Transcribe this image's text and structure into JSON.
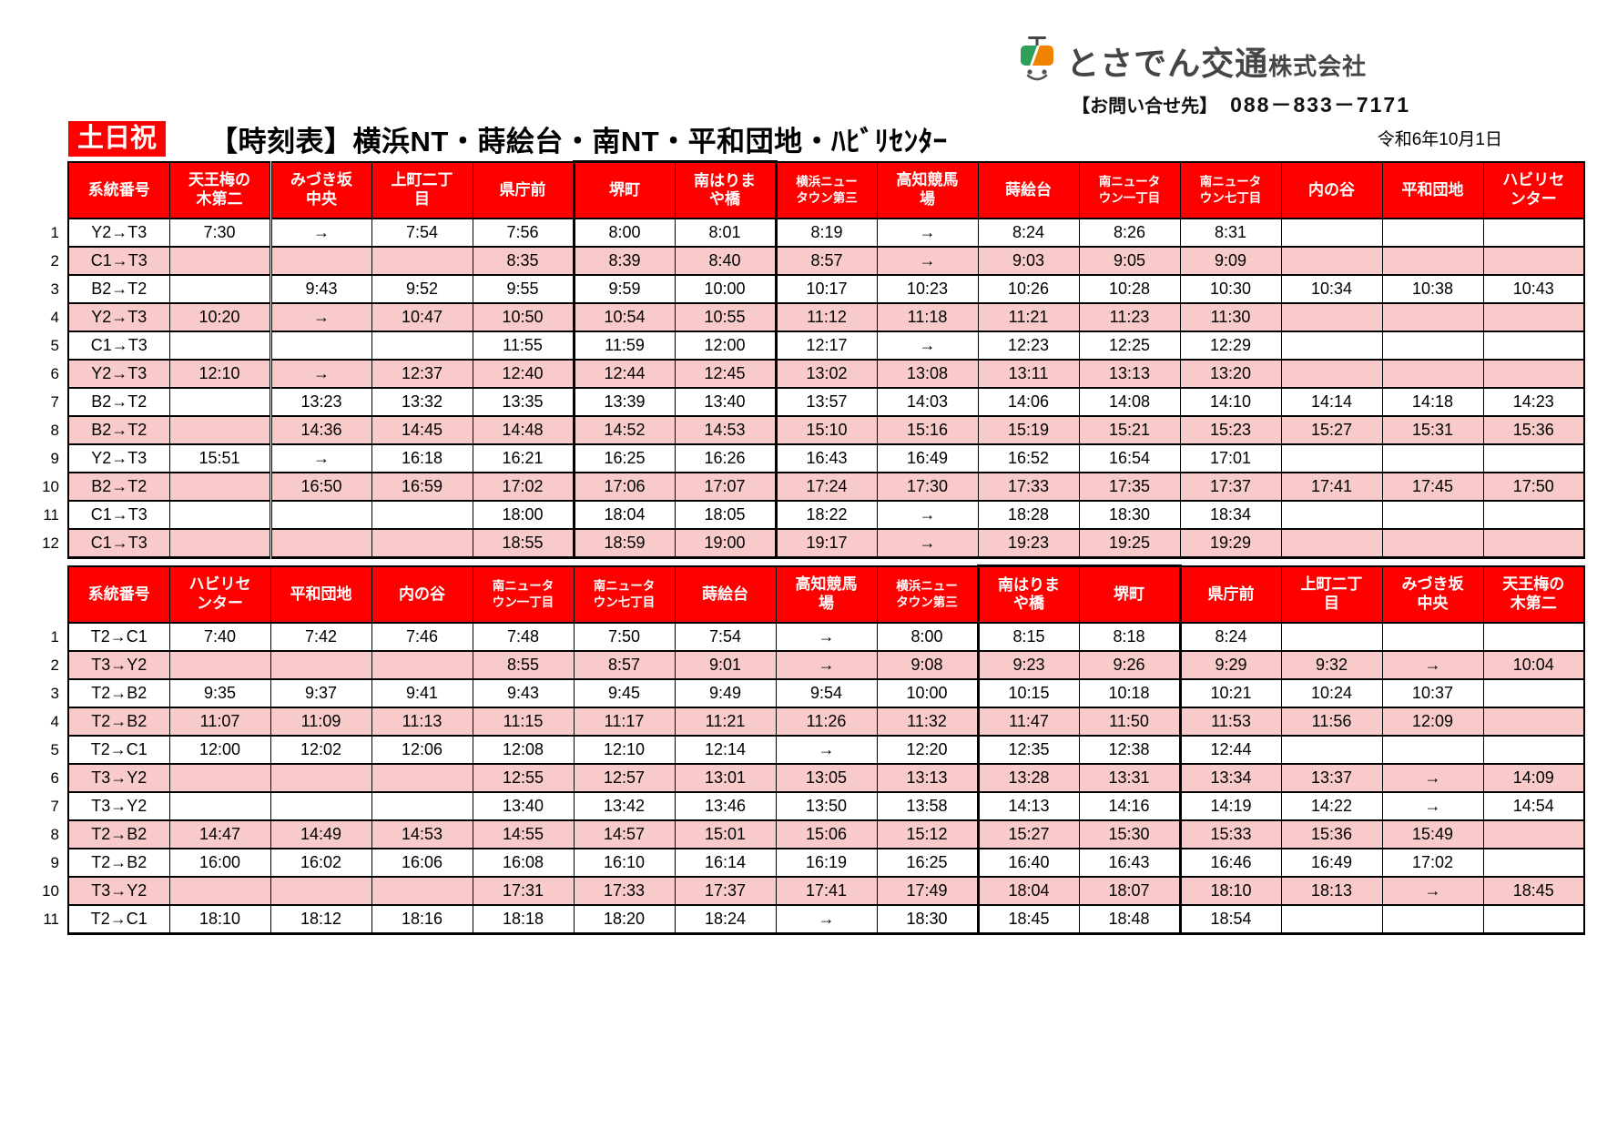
{
  "page": {
    "badge": "土日祝",
    "title": "【時刻表】横浜NT・蒔絵台・南NT・平和団地・ﾊﾋﾞﾘｾﾝﾀｰ",
    "date": "令和6年10月1日"
  },
  "logo": {
    "company": "とさでん交通",
    "suffix": "株式会社",
    "contact_label": "【お問い合せ先】",
    "phone": "088－833－7171",
    "icon": "tram-icon",
    "green": "#2fa05a",
    "orange": "#f08300"
  },
  "colors": {
    "header_red": "#ff0000",
    "row_pink": "#f8caca",
    "row_white": "#ffffff",
    "border": "#000000",
    "badge_red": "#ff0000"
  },
  "tables": [
    {
      "name": "outbound-timetable",
      "highlight_cols": [
        5,
        6
      ],
      "double_border_after_col": 1,
      "headers": [
        "系統番号",
        "天王梅の\n木第二",
        "みづき坂\n中央",
        "上町二丁\n目",
        "県庁前",
        "堺町",
        "南はりま\nや橋",
        "横浜ニュー\nタウン第三",
        "高知競馬\n場",
        "蒔絵台",
        "南ニュータ\nウン一丁目",
        "南ニュータ\nウン七丁目",
        "内の谷",
        "平和団地",
        "ハビリセ\nンター"
      ],
      "rows": [
        [
          "Y2→T3",
          "7:30",
          "→",
          "7:54",
          "7:56",
          "8:00",
          "8:01",
          "8:19",
          "→",
          "8:24",
          "8:26",
          "8:31",
          "",
          "",
          ""
        ],
        [
          "C1→T3",
          "",
          "",
          "",
          "8:35",
          "8:39",
          "8:40",
          "8:57",
          "→",
          "9:03",
          "9:05",
          "9:09",
          "",
          "",
          ""
        ],
        [
          "B2→T2",
          "",
          "9:43",
          "9:52",
          "9:55",
          "9:59",
          "10:00",
          "10:17",
          "10:23",
          "10:26",
          "10:28",
          "10:30",
          "10:34",
          "10:38",
          "10:43"
        ],
        [
          "Y2→T3",
          "10:20",
          "→",
          "10:47",
          "10:50",
          "10:54",
          "10:55",
          "11:12",
          "11:18",
          "11:21",
          "11:23",
          "11:30",
          "",
          "",
          ""
        ],
        [
          "C1→T3",
          "",
          "",
          "",
          "11:55",
          "11:59",
          "12:00",
          "12:17",
          "→",
          "12:23",
          "12:25",
          "12:29",
          "",
          "",
          ""
        ],
        [
          "Y2→T3",
          "12:10",
          "→",
          "12:37",
          "12:40",
          "12:44",
          "12:45",
          "13:02",
          "13:08",
          "13:11",
          "13:13",
          "13:20",
          "",
          "",
          ""
        ],
        [
          "B2→T2",
          "",
          "13:23",
          "13:32",
          "13:35",
          "13:39",
          "13:40",
          "13:57",
          "14:03",
          "14:06",
          "14:08",
          "14:10",
          "14:14",
          "14:18",
          "14:23"
        ],
        [
          "B2→T2",
          "",
          "14:36",
          "14:45",
          "14:48",
          "14:52",
          "14:53",
          "15:10",
          "15:16",
          "15:19",
          "15:21",
          "15:23",
          "15:27",
          "15:31",
          "15:36"
        ],
        [
          "Y2→T3",
          "15:51",
          "→",
          "16:18",
          "16:21",
          "16:25",
          "16:26",
          "16:43",
          "16:49",
          "16:52",
          "16:54",
          "17:01",
          "",
          "",
          ""
        ],
        [
          "B2→T2",
          "",
          "16:50",
          "16:59",
          "17:02",
          "17:06",
          "17:07",
          "17:24",
          "17:30",
          "17:33",
          "17:35",
          "17:37",
          "17:41",
          "17:45",
          "17:50"
        ],
        [
          "C1→T3",
          "",
          "",
          "",
          "18:00",
          "18:04",
          "18:05",
          "18:22",
          "→",
          "18:28",
          "18:30",
          "18:34",
          "",
          "",
          ""
        ],
        [
          "C1→T3",
          "",
          "",
          "",
          "18:55",
          "18:59",
          "19:00",
          "19:17",
          "→",
          "19:23",
          "19:25",
          "19:29",
          "",
          "",
          ""
        ]
      ]
    },
    {
      "name": "inbound-timetable",
      "highlight_cols": [
        9,
        10
      ],
      "double_border_after_col": null,
      "headers": [
        "系統番号",
        "ハビリセ\nンター",
        "平和団地",
        "内の谷",
        "南ニュータ\nウン一丁目",
        "南ニュータ\nウン七丁目",
        "蒔絵台",
        "高知競馬\n場",
        "横浜ニュー\nタウン第三",
        "南はりま\nや橋",
        "堺町",
        "県庁前",
        "上町二丁\n目",
        "みづき坂\n中央",
        "天王梅の\n木第二"
      ],
      "rows": [
        [
          "T2→C1",
          "7:40",
          "7:42",
          "7:46",
          "7:48",
          "7:50",
          "7:54",
          "→",
          "8:00",
          "8:15",
          "8:18",
          "8:24",
          "",
          "",
          ""
        ],
        [
          "T3→Y2",
          "",
          "",
          "",
          "8:55",
          "8:57",
          "9:01",
          "→",
          "9:08",
          "9:23",
          "9:26",
          "9:29",
          "9:32",
          "→",
          "10:04"
        ],
        [
          "T2→B2",
          "9:35",
          "9:37",
          "9:41",
          "9:43",
          "9:45",
          "9:49",
          "9:54",
          "10:00",
          "10:15",
          "10:18",
          "10:21",
          "10:24",
          "10:37",
          ""
        ],
        [
          "T2→B2",
          "11:07",
          "11:09",
          "11:13",
          "11:15",
          "11:17",
          "11:21",
          "11:26",
          "11:32",
          "11:47",
          "11:50",
          "11:53",
          "11:56",
          "12:09",
          ""
        ],
        [
          "T2→C1",
          "12:00",
          "12:02",
          "12:06",
          "12:08",
          "12:10",
          "12:14",
          "→",
          "12:20",
          "12:35",
          "12:38",
          "12:44",
          "",
          "",
          ""
        ],
        [
          "T3→Y2",
          "",
          "",
          "",
          "12:55",
          "12:57",
          "13:01",
          "13:05",
          "13:13",
          "13:28",
          "13:31",
          "13:34",
          "13:37",
          "→",
          "14:09"
        ],
        [
          "T3→Y2",
          "",
          "",
          "",
          "13:40",
          "13:42",
          "13:46",
          "13:50",
          "13:58",
          "14:13",
          "14:16",
          "14:19",
          "14:22",
          "→",
          "14:54"
        ],
        [
          "T2→B2",
          "14:47",
          "14:49",
          "14:53",
          "14:55",
          "14:57",
          "15:01",
          "15:06",
          "15:12",
          "15:27",
          "15:30",
          "15:33",
          "15:36",
          "15:49",
          ""
        ],
        [
          "T2→B2",
          "16:00",
          "16:02",
          "16:06",
          "16:08",
          "16:10",
          "16:14",
          "16:19",
          "16:25",
          "16:40",
          "16:43",
          "16:46",
          "16:49",
          "17:02",
          ""
        ],
        [
          "T3→Y2",
          "",
          "",
          "",
          "17:31",
          "17:33",
          "17:37",
          "17:41",
          "17:49",
          "18:04",
          "18:07",
          "18:10",
          "18:13",
          "→",
          "18:45"
        ],
        [
          "T2→C1",
          "18:10",
          "18:12",
          "18:16",
          "18:18",
          "18:20",
          "18:24",
          "→",
          "18:30",
          "18:45",
          "18:48",
          "18:54",
          "",
          "",
          ""
        ]
      ]
    }
  ]
}
